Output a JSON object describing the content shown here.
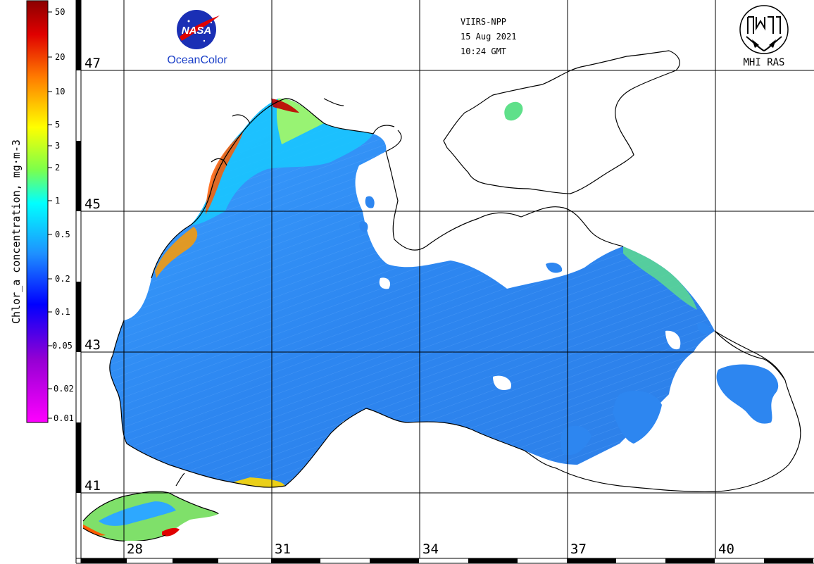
{
  "header": {
    "satellite": "VIIRS-NPP",
    "date": "15 Aug 2021",
    "time": "10:24 GMT"
  },
  "logos": {
    "nasa": {
      "text": "NASA",
      "caption": "OceanColor"
    },
    "mhi": {
      "caption": "MHI RAS"
    }
  },
  "colorbar": {
    "title": "Chlor_a concentration, mg·m-3",
    "ticks": [
      "50",
      "20",
      "10",
      "5",
      "3",
      "2",
      "1",
      "0.5",
      "0.2",
      "0.1",
      "0.05",
      "0.02",
      "0.01"
    ],
    "colors": [
      "#8b0000",
      "#ff0000",
      "#ff8c00",
      "#ffff00",
      "#00ff7f",
      "#00ffff",
      "#1e90ff",
      "#0000ff",
      "#8a2be2",
      "#ff00ff"
    ]
  },
  "latitudes": [
    "47",
    "45",
    "43",
    "41"
  ],
  "longitudes": [
    "28",
    "31",
    "34",
    "37",
    "40"
  ]
}
